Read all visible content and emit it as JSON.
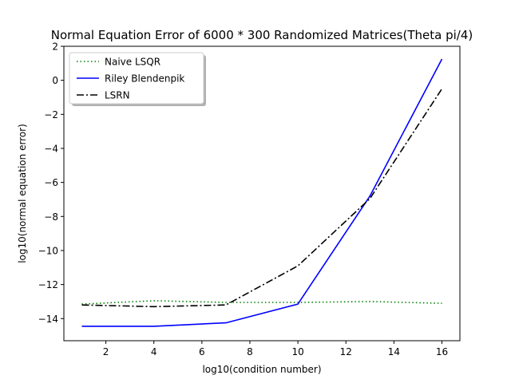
{
  "chart_data": {
    "type": "line",
    "title": "Normal Equation Error of 6000 * 300 Randomized Matrices(Theta pi/4)",
    "xlabel": "log10(condition number)",
    "ylabel": "log10(normal equation error)",
    "xlim": [
      0.25,
      16.75
    ],
    "ylim": [
      -15.3,
      2.0
    ],
    "xticks": [
      2,
      4,
      6,
      8,
      10,
      12,
      14,
      16
    ],
    "yticks": [
      2,
      0,
      -2,
      -4,
      -6,
      -8,
      -10,
      -12,
      -14
    ],
    "xtick_labels": [
      "2",
      "4",
      "6",
      "8",
      "10",
      "12",
      "14",
      "16"
    ],
    "ytick_labels": [
      "2",
      "0",
      "−2",
      "−4",
      "−6",
      "−8",
      "−10",
      "−12",
      "−14"
    ],
    "grid": false,
    "legend_position": "top-left",
    "series": [
      {
        "name": "Naive LSQR",
        "color": "#008000",
        "line_style": "dotted",
        "x": [
          1,
          4,
          7,
          10,
          13,
          16
        ],
        "y": [
          -13.15,
          -12.95,
          -13.05,
          -13.05,
          -13.0,
          -13.1
        ]
      },
      {
        "name": "Riley Blendenpik",
        "color": "#0000ff",
        "line_style": "solid",
        "x": [
          1,
          4,
          7,
          10,
          13,
          16
        ],
        "y": [
          -14.45,
          -14.45,
          -14.25,
          -13.15,
          -6.8,
          1.25
        ]
      },
      {
        "name": "LSRN",
        "color": "#000000",
        "line_style": "dashdot",
        "x": [
          1,
          4,
          7,
          10,
          13,
          16
        ],
        "y": [
          -13.2,
          -13.3,
          -13.2,
          -10.9,
          -6.95,
          -0.5
        ]
      }
    ]
  }
}
